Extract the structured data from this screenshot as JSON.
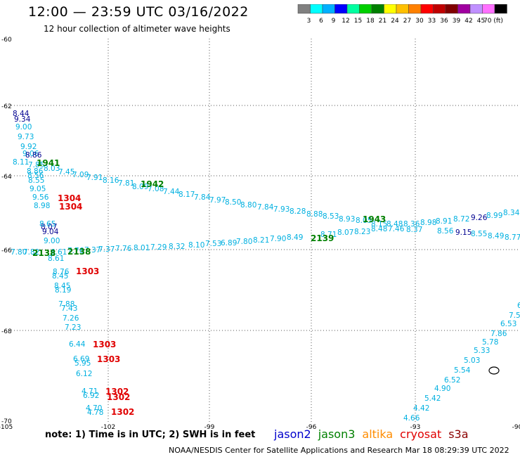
{
  "header": {
    "title": "12:00 — 23:59 UTC 03/16/2022",
    "subtitle": "12 hour collection of altimeter wave heights"
  },
  "colorbar": {
    "labels": [
      "3",
      "6",
      "9",
      "12",
      "15",
      "18",
      "21",
      "24",
      "27",
      "30",
      "33",
      "36",
      "39",
      "42",
      "45",
      "70 (ft)"
    ],
    "colors": [
      "#808080",
      "#00ffff",
      "#00b0ff",
      "#0000ff",
      "#00ffa0",
      "#00d000",
      "#008000",
      "#ffff00",
      "#ffc000",
      "#ff8000",
      "#ff0000",
      "#c00000",
      "#800000",
      "#a000a0",
      "#c090ff",
      "#ff70ff",
      "#000000"
    ]
  },
  "axes": {
    "lat_labels": [
      "-60",
      "-62",
      "-64",
      "-66",
      "-68",
      "-70"
    ],
    "lon_labels": [
      "-105",
      "-102",
      "-99",
      "-96",
      "-93",
      "-90"
    ]
  },
  "colors": {
    "jason2": "#0000cc",
    "jason3": "#008000",
    "altika": "#ff8c00",
    "cryosat": "#e00000",
    "s3a": "#8b0000",
    "cyan": "#00b0e0",
    "navy": "#000090",
    "grid": "#555555"
  },
  "tracks": [
    {
      "c": "navy",
      "items": [
        [
          "8.44",
          18,
          165
        ],
        [
          "9.34",
          20,
          173
        ]
      ]
    },
    {
      "c": "cyan",
      "items": [
        [
          "9.00",
          22,
          184
        ],
        [
          "9.73",
          25,
          198
        ],
        [
          "9.92",
          29,
          212
        ],
        [
          "9.06",
          32,
          222
        ],
        [
          "8.11",
          18,
          234
        ],
        [
          "7.85",
          40,
          238
        ],
        [
          "8.03",
          62,
          243
        ],
        [
          "8.86",
          38,
          247
        ],
        [
          "8.56",
          39,
          253
        ],
        [
          "8.55",
          40,
          260
        ],
        [
          "9.05",
          42,
          272
        ],
        [
          "9.56",
          46,
          284
        ],
        [
          "8.98",
          48,
          296
        ]
      ]
    },
    {
      "c": "navy",
      "items": [
        [
          "8.86",
          36,
          224
        ]
      ]
    },
    {
      "c": "cyan",
      "items": [
        [
          "7.45",
          83,
          248
        ],
        [
          "7.09",
          103,
          252
        ],
        [
          "7.91",
          123,
          256
        ],
        [
          "8.16",
          146,
          260
        ],
        [
          "7.81",
          168,
          264
        ],
        [
          "8.09",
          188,
          269
        ],
        [
          "7.08",
          210,
          272
        ],
        [
          "7.44",
          232,
          276
        ],
        [
          "8.17",
          254,
          280
        ],
        [
          "7.84",
          276,
          284
        ],
        [
          "7.97",
          298,
          288
        ],
        [
          "8.50",
          320,
          291
        ],
        [
          "8.80",
          342,
          295
        ],
        [
          "7.84",
          366,
          298
        ],
        [
          "7.93",
          389,
          301
        ],
        [
          "8.28",
          412,
          304
        ],
        [
          "8.88",
          436,
          308
        ],
        [
          "8.53",
          459,
          311
        ],
        [
          "8.93",
          482,
          315
        ],
        [
          "8.05",
          506,
          317
        ],
        [
          "8.15",
          528,
          322
        ],
        [
          "8.48",
          550,
          322
        ],
        [
          "8.36",
          574,
          322
        ],
        [
          "8.98",
          598,
          320
        ],
        [
          "8.91",
          620,
          318
        ],
        [
          "8.72",
          645,
          315
        ],
        [
          "8.99",
          692,
          310
        ],
        [
          "8.34",
          716,
          306
        ]
      ]
    },
    {
      "c": "navy",
      "items": [
        [
          "9.26",
          670,
          313
        ],
        [
          "9.15",
          648,
          334
        ]
      ]
    },
    {
      "c": "cyan",
      "items": [
        [
          "8.48",
          528,
          329
        ],
        [
          "7.46",
          552,
          329
        ],
        [
          "8.37",
          578,
          330
        ],
        [
          "8.56",
          622,
          332
        ],
        [
          "8.55",
          670,
          336
        ],
        [
          "8.49",
          694,
          339
        ],
        [
          "8.77",
          718,
          341
        ]
      ]
    },
    {
      "c": "cyan",
      "items": [
        [
          "8.71",
          456,
          337
        ],
        [
          "8.07",
          480,
          334
        ],
        [
          "8.23",
          504,
          333
        ],
        [
          "7.90",
          384,
          343
        ],
        [
          "8.49",
          408,
          341
        ],
        [
          "8.21",
          360,
          345
        ],
        [
          "7.80",
          336,
          347
        ],
        [
          "6.89",
          314,
          349
        ],
        [
          "7.53",
          292,
          350
        ],
        [
          "8.10",
          268,
          352
        ],
        [
          "8.32",
          240,
          354
        ],
        [
          "7.29",
          214,
          355
        ],
        [
          "8.01",
          190,
          356
        ],
        [
          "7.76",
          164,
          357
        ],
        [
          "7.37",
          140,
          358
        ],
        [
          "7.37",
          120,
          359
        ],
        [
          "7.76",
          96,
          360
        ],
        [
          "7.80",
          15,
          362
        ],
        [
          "7.82",
          33,
          362
        ],
        [
          "6.61",
          72,
          362
        ],
        [
          "8.61",
          68,
          371
        ]
      ]
    },
    {
      "c": "navy",
      "items": [
        [
          "8.07",
          58,
          326
        ],
        [
          "9.04",
          60,
          333
        ]
      ]
    },
    {
      "c": "cyan",
      "items": [
        [
          "8.65",
          56,
          322
        ],
        [
          "9.00",
          62,
          346
        ],
        [
          "8.76",
          75,
          390
        ],
        [
          "8.45",
          74,
          396
        ],
        [
          "8.45",
          77,
          410
        ],
        [
          "8.19",
          78,
          416
        ],
        [
          "7.88",
          83,
          436
        ],
        [
          "7.43",
          87,
          442
        ],
        [
          "7.26",
          89,
          456
        ],
        [
          "7.23",
          92,
          469
        ],
        [
          "6.44",
          98,
          493
        ],
        [
          "6.69",
          104,
          514
        ],
        [
          "5.95",
          106,
          520
        ],
        [
          "6.12",
          108,
          535
        ],
        [
          "4.71",
          116,
          560
        ],
        [
          "6.92",
          118,
          566
        ],
        [
          "4.70",
          122,
          584
        ],
        [
          "4.78",
          124,
          590
        ]
      ]
    },
    {
      "c": "cyan",
      "items": [
        [
          "7.5",
          724,
          452
        ],
        [
          "6.53",
          712,
          464
        ],
        [
          "7.86",
          698,
          478
        ],
        [
          "5.78",
          686,
          490
        ],
        [
          "5.33",
          674,
          502
        ],
        [
          "5.03",
          660,
          516
        ],
        [
          "5.54",
          646,
          530
        ],
        [
          "6.52",
          632,
          544
        ],
        [
          "4.90",
          618,
          556
        ],
        [
          "5.42",
          604,
          570
        ],
        [
          "4.42",
          588,
          584
        ],
        [
          "4.66",
          574,
          598
        ],
        [
          "6",
          736,
          438
        ]
      ]
    },
    {
      "c": "jason3",
      "items": [
        [
          "1941",
          52,
          236
        ],
        [
          "1942",
          200,
          266
        ],
        [
          "1943",
          516,
          316
        ],
        [
          "2139",
          442,
          343
        ],
        [
          "2138",
          46,
          364
        ],
        [
          "2138",
          96,
          362
        ]
      ]
    },
    {
      "c": "cryosat",
      "items": [
        [
          "1304",
          82,
          286
        ],
        [
          "1304",
          84,
          298
        ],
        [
          "1303",
          108,
          390
        ],
        [
          "1303",
          132,
          494
        ],
        [
          "1303",
          138,
          515
        ],
        [
          "1302",
          150,
          561
        ],
        [
          "1302",
          152,
          569
        ],
        [
          "1302",
          158,
          590
        ]
      ]
    }
  ],
  "footer": {
    "note": "note:  1) Time is in UTC;  2) SWH is in feet",
    "legend": [
      {
        "label": "jason2",
        "color": "jason2"
      },
      {
        "label": "jason3",
        "color": "jason3"
      },
      {
        "label": "altika",
        "color": "altika"
      },
      {
        "label": "cryosat",
        "color": "cryosat"
      },
      {
        "label": "s3a",
        "color": "s3a"
      }
    ],
    "credit": "NOAA/NESDIS Center for Satellite Applications and Research    Mar 18 08:29:39 UTC 2022"
  }
}
